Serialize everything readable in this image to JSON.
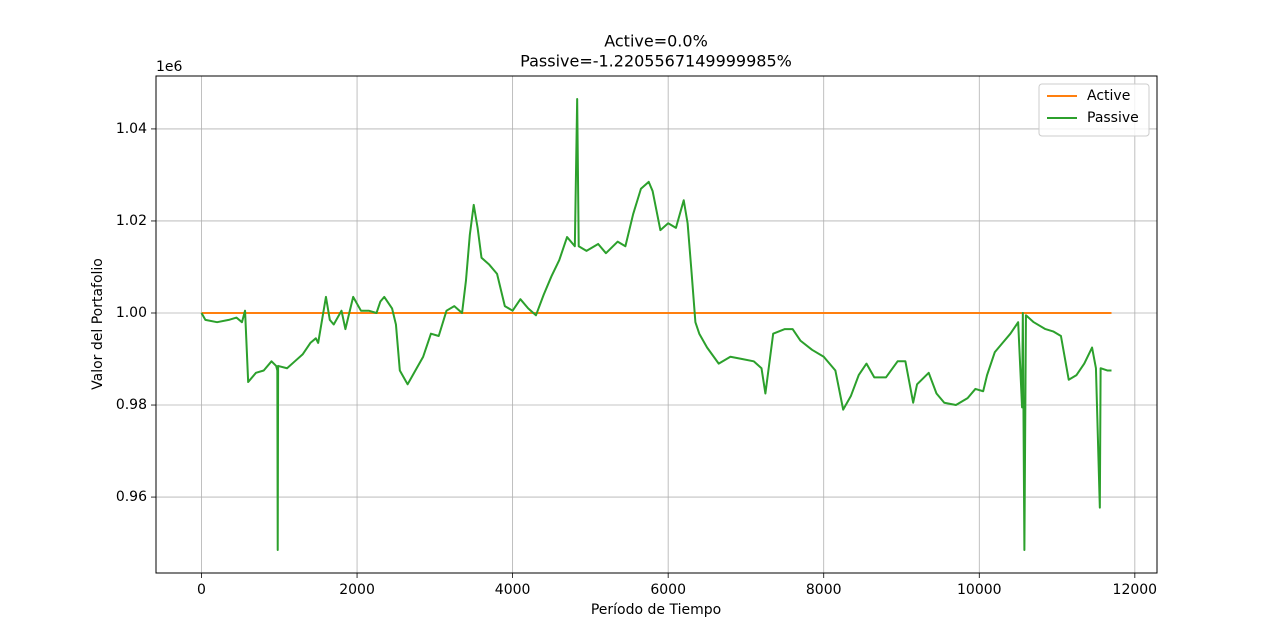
{
  "chart_data": {
    "type": "line",
    "title": [
      "Active=0.0%",
      "Passive=-1.2205567149999985%"
    ],
    "xlabel": "Período de Tiempo",
    "ylabel": "Valor del Portafolio",
    "y_offset_label": "1e6",
    "xlim": [
      -585,
      12285
    ],
    "ylim": [
      0.9435,
      1.0515
    ],
    "xticks": [
      0,
      2000,
      4000,
      6000,
      8000,
      10000,
      12000
    ],
    "yticks": [
      0.96,
      0.98,
      {
        "value": 1,
        "label": "1.00"
      },
      1.02,
      1.04
    ],
    "grid": true,
    "legend": "upper right",
    "series": [
      {
        "name": "Active",
        "color": "#ff7f0e",
        "x": [
          0,
          11700
        ],
        "values": [
          1,
          1
        ]
      },
      {
        "name": "Passive",
        "color": "#2ca02c",
        "x": [
          0,
          50,
          200,
          350,
          450,
          520,
          560,
          600,
          700,
          800,
          900,
          960,
          975,
          980,
          985,
          1100,
          1200,
          1300,
          1400,
          1470,
          1500,
          1600,
          1650,
          1700,
          1800,
          1850,
          1950,
          2050,
          2150,
          2250,
          2300,
          2350,
          2450,
          2500,
          2550,
          2650,
          2750,
          2850,
          2950,
          3050,
          3150,
          3250,
          3350,
          3400,
          3450,
          3500,
          3550,
          3600,
          3700,
          3800,
          3900,
          4000,
          4100,
          4200,
          4300,
          4400,
          4500,
          4600,
          4700,
          4800,
          4830,
          4850,
          4950,
          5100,
          5200,
          5350,
          5450,
          5550,
          5650,
          5750,
          5800,
          5900,
          6000,
          6100,
          6150,
          6200,
          6250,
          6300,
          6350,
          6400,
          6500,
          6650,
          6800,
          6950,
          7100,
          7200,
          7250,
          7350,
          7500,
          7600,
          7700,
          7850,
          8000,
          8150,
          8250,
          8350,
          8450,
          8550,
          8650,
          8800,
          8950,
          9050,
          9150,
          9200,
          9350,
          9450,
          9550,
          9700,
          9850,
          9950,
          10050,
          10100,
          10200,
          10300,
          10400,
          10500,
          10550,
          10560,
          10580,
          10600,
          10700,
          10850,
          10950,
          11050,
          11150,
          11250,
          11350,
          11450,
          11500,
          11550,
          11560,
          11650,
          11700
        ],
        "values": [
          1.0,
          0.9985,
          0.998,
          0.9985,
          0.999,
          0.998,
          1.0005,
          0.985,
          0.987,
          0.9875,
          0.9895,
          0.9885,
          0.9875,
          0.9485,
          0.9885,
          0.988,
          0.9895,
          0.991,
          0.9935,
          0.9945,
          0.9935,
          1.0035,
          0.9985,
          0.9975,
          1.0005,
          0.9965,
          1.0035,
          1.0005,
          1.0005,
          1.0,
          1.0025,
          1.0035,
          1.001,
          0.9975,
          0.9875,
          0.9845,
          0.9875,
          0.9905,
          0.9955,
          0.995,
          1.0005,
          1.0015,
          1.0,
          1.007,
          1.017,
          1.0235,
          1.0185,
          1.012,
          1.0105,
          1.0085,
          1.0015,
          1.0005,
          1.003,
          1.001,
          0.9995,
          1.004,
          1.008,
          1.0115,
          1.0165,
          1.0145,
          1.0465,
          1.0145,
          1.0135,
          1.015,
          1.013,
          1.0155,
          1.0145,
          1.0215,
          1.027,
          1.0285,
          1.0265,
          1.018,
          1.0195,
          1.0185,
          1.0215,
          1.0245,
          1.0195,
          1.009,
          0.998,
          0.9955,
          0.9925,
          0.989,
          0.9905,
          0.99,
          0.9895,
          0.988,
          0.9825,
          0.9955,
          0.9965,
          0.9965,
          0.994,
          0.992,
          0.9905,
          0.9875,
          0.979,
          0.982,
          0.9865,
          0.989,
          0.986,
          0.986,
          0.9895,
          0.9895,
          0.9805,
          0.9845,
          0.987,
          0.9825,
          0.9805,
          0.98,
          0.9815,
          0.9835,
          0.983,
          0.9865,
          0.9915,
          0.9935,
          0.9955,
          0.998,
          0.9795,
          1.0,
          0.9485,
          0.9995,
          0.998,
          0.9965,
          0.996,
          0.995,
          0.9855,
          0.9865,
          0.989,
          0.9925,
          0.988,
          0.9577,
          0.988,
          0.9875,
          0.9875
        ]
      }
    ]
  }
}
